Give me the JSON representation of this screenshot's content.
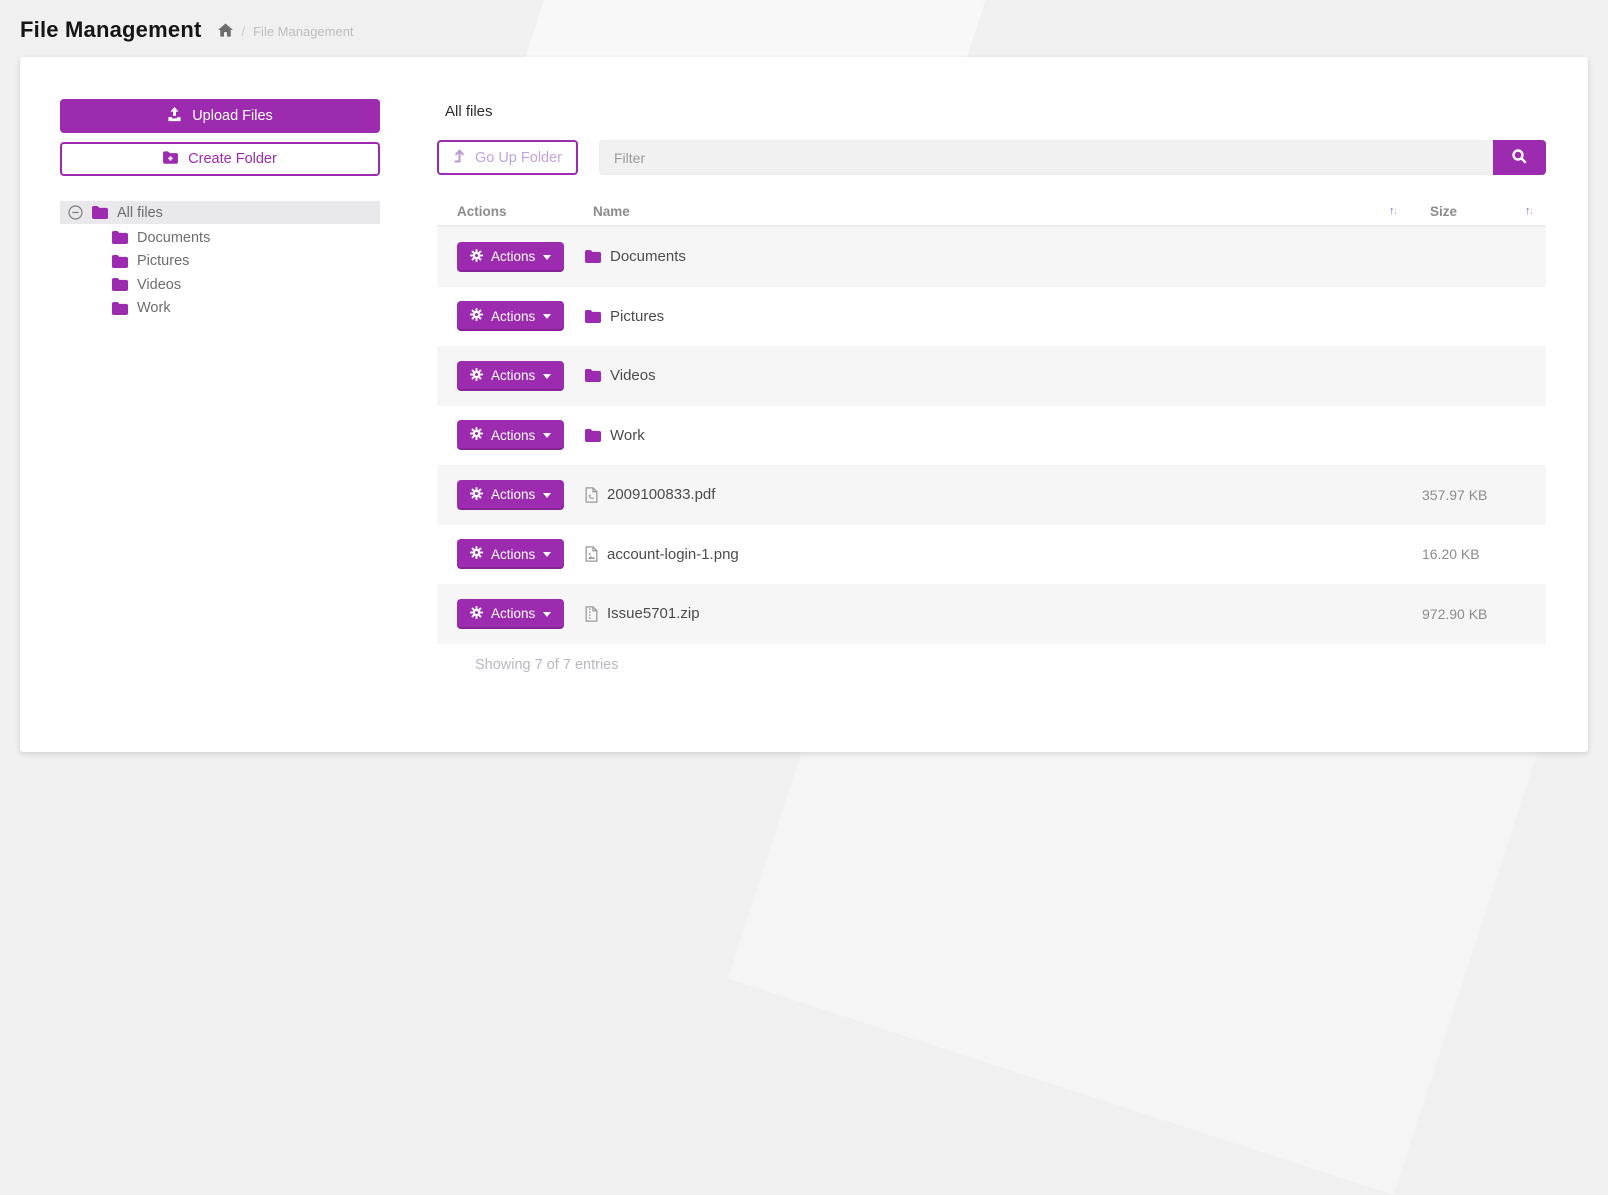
{
  "colors": {
    "accent": "#9C2BB0"
  },
  "header": {
    "title": "File Management",
    "breadcrumb_separator": "/",
    "breadcrumb_current": "File Management"
  },
  "sidebar": {
    "upload_button_label": "Upload Files",
    "create_folder_button_label": "Create Folder",
    "tree_root_label": "All files",
    "tree_children": [
      "Documents",
      "Pictures",
      "Videos",
      "Work"
    ]
  },
  "main": {
    "heading": "All files",
    "go_up_folder_label": "Go Up Folder",
    "filter": {
      "placeholder": "Filter",
      "value": ""
    },
    "table": {
      "columns": {
        "actions": "Actions",
        "name": "Name",
        "size": "Size"
      },
      "row_action_label": "Actions",
      "rows": [
        {
          "icon": "folder-icon",
          "name": "Documents",
          "size": ""
        },
        {
          "icon": "folder-icon",
          "name": "Pictures",
          "size": ""
        },
        {
          "icon": "folder-icon",
          "name": "Videos",
          "size": ""
        },
        {
          "icon": "folder-icon",
          "name": "Work",
          "size": ""
        },
        {
          "icon": "pdf-file-icon",
          "name": "2009100833.pdf",
          "size": "357.97 KB"
        },
        {
          "icon": "image-file-icon",
          "name": "account-login-1.png",
          "size": "16.20 KB"
        },
        {
          "icon": "archive-file-icon",
          "name": "Issue5701.zip",
          "size": "972.90 KB"
        }
      ]
    },
    "footer_text": "Showing 7 of 7 entries"
  }
}
